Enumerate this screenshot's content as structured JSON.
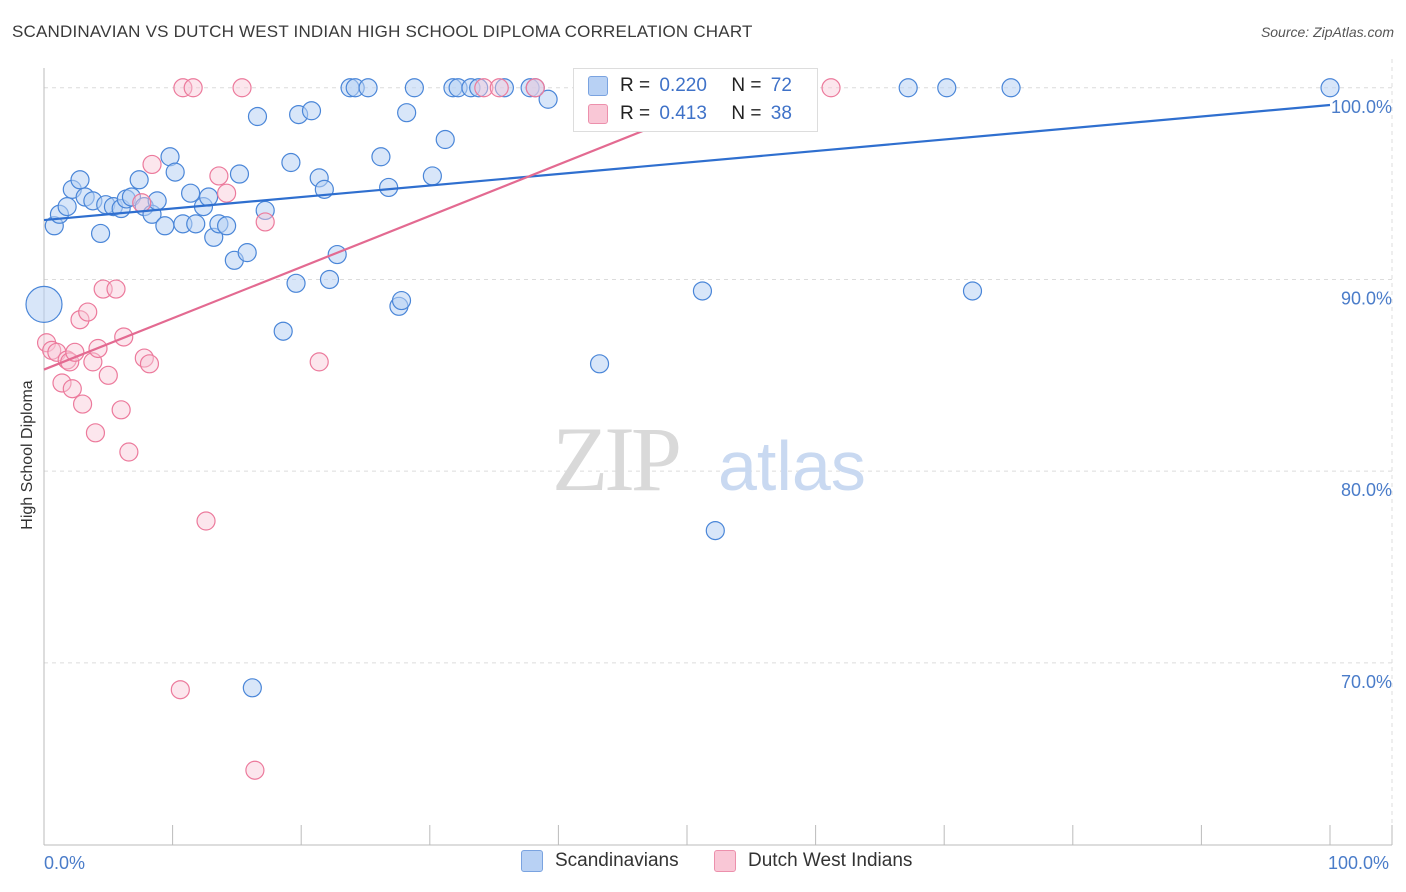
{
  "title": "SCANDINAVIAN VS DUTCH WEST INDIAN HIGH SCHOOL DIPLOMA CORRELATION CHART",
  "source": "Source: ZipAtlas.com",
  "watermark": {
    "zip": "ZIP",
    "atlas": "atlas"
  },
  "colors": {
    "blue": "#4a86d8",
    "blue_fill": "#b8d1f4",
    "pink": "#ec7a9c",
    "pink_fill": "#f9c7d6",
    "blue_line": "#2f6fcf",
    "pink_line": "#e36a91"
  },
  "legend": {
    "rows": [
      {
        "r_label": "R =",
        "r_value": "0.220",
        "n_label": "N =",
        "n_value": "72"
      },
      {
        "r_label": "R =",
        "r_value": "0.413",
        "n_label": "N =",
        "n_value": "38"
      }
    ]
  },
  "bottom_legend": [
    "Scandinavians",
    "Dutch West Indians"
  ],
  "chart_data": {
    "type": "scatter",
    "xlabel": "",
    "ylabel": "High School Diploma",
    "x_tick_labels": [
      "0.0%",
      "100.0%"
    ],
    "y_tick_labels": [
      "100.0%",
      "90.0%",
      "80.0%",
      "70.0%"
    ],
    "y_ticks": [
      100,
      90,
      80,
      70
    ],
    "xlim": [
      0,
      100
    ],
    "ylim": [
      60.5,
      101.5
    ],
    "series": [
      {
        "name": "Scandinavians",
        "trend": {
          "x": [
            0,
            100
          ],
          "y": [
            93.1,
            99.1
          ]
        },
        "points": [
          [
            0.8,
            92.8
          ],
          [
            1.2,
            93.4
          ],
          [
            1.8,
            93.8
          ],
          [
            2.2,
            94.7
          ],
          [
            2.8,
            95.2
          ],
          [
            3.2,
            94.3
          ],
          [
            3.8,
            94.1
          ],
          [
            4.4,
            92.4
          ],
          [
            4.8,
            93.9
          ],
          [
            5.4,
            93.8
          ],
          [
            6.0,
            93.7
          ],
          [
            6.4,
            94.2
          ],
          [
            6.8,
            94.3
          ],
          [
            7.4,
            95.2
          ],
          [
            7.8,
            93.8
          ],
          [
            8.4,
            93.4
          ],
          [
            8.8,
            94.1
          ],
          [
            9.4,
            92.8
          ],
          [
            9.8,
            96.4
          ],
          [
            10.2,
            95.6
          ],
          [
            10.8,
            92.9
          ],
          [
            11.4,
            94.5
          ],
          [
            11.8,
            92.9
          ],
          [
            12.4,
            93.8
          ],
          [
            12.8,
            94.3
          ],
          [
            13.2,
            92.2
          ],
          [
            13.6,
            92.9
          ],
          [
            14.2,
            92.8
          ],
          [
            14.8,
            91.0
          ],
          [
            15.2,
            95.5
          ],
          [
            15.8,
            91.4
          ],
          [
            16.6,
            98.5
          ],
          [
            17.2,
            93.6
          ],
          [
            18.6,
            87.3
          ],
          [
            19.2,
            96.1
          ],
          [
            19.6,
            89.8
          ],
          [
            19.8,
            98.6
          ],
          [
            20.8,
            98.8
          ],
          [
            21.4,
            95.3
          ],
          [
            21.8,
            94.7
          ],
          [
            22.2,
            90.0
          ],
          [
            22.8,
            91.3
          ],
          [
            23.8,
            100
          ],
          [
            24.2,
            100
          ],
          [
            25.2,
            100
          ],
          [
            26.2,
            96.4
          ],
          [
            26.8,
            94.8
          ],
          [
            27.6,
            88.6
          ],
          [
            27.8,
            88.9
          ],
          [
            28.2,
            98.7
          ],
          [
            28.8,
            100
          ],
          [
            30.2,
            95.4
          ],
          [
            31.2,
            97.3
          ],
          [
            31.8,
            100
          ],
          [
            32.2,
            100
          ],
          [
            33.2,
            100
          ],
          [
            33.8,
            100
          ],
          [
            35.8,
            100
          ],
          [
            37.8,
            100
          ],
          [
            38.2,
            100
          ],
          [
            39.2,
            99.4
          ],
          [
            42.2,
            100
          ],
          [
            43.2,
            85.6
          ],
          [
            46.2,
            100
          ],
          [
            51.2,
            89.4
          ],
          [
            52.2,
            76.9
          ],
          [
            67.2,
            100
          ],
          [
            70.2,
            100
          ],
          [
            72.2,
            89.4
          ],
          [
            75.2,
            100
          ],
          [
            100.0,
            100
          ],
          [
            16.2,
            68.7
          ]
        ]
      },
      {
        "name": "Dutch West Indians",
        "trend": {
          "x": [
            0,
            55
          ],
          "y": [
            85.3,
            100
          ]
        },
        "points": [
          [
            0.2,
            86.7
          ],
          [
            0.6,
            86.3
          ],
          [
            1.0,
            86.2
          ],
          [
            1.4,
            84.6
          ],
          [
            1.8,
            85.8
          ],
          [
            2.0,
            85.7
          ],
          [
            2.2,
            84.3
          ],
          [
            2.4,
            86.2
          ],
          [
            2.8,
            87.9
          ],
          [
            3.0,
            83.5
          ],
          [
            3.4,
            88.3
          ],
          [
            3.8,
            85.7
          ],
          [
            4.0,
            82.0
          ],
          [
            4.2,
            86.4
          ],
          [
            4.6,
            89.5
          ],
          [
            5.0,
            85.0
          ],
          [
            5.6,
            89.5
          ],
          [
            6.0,
            83.2
          ],
          [
            6.2,
            87.0
          ],
          [
            6.6,
            81.0
          ],
          [
            7.6,
            94.0
          ],
          [
            7.8,
            85.9
          ],
          [
            8.2,
            85.6
          ],
          [
            8.4,
            96.0
          ],
          [
            10.6,
            68.6
          ],
          [
            10.8,
            100
          ],
          [
            11.6,
            100
          ],
          [
            12.6,
            77.4
          ],
          [
            13.6,
            95.4
          ],
          [
            14.2,
            94.5
          ],
          [
            15.4,
            100
          ],
          [
            16.4,
            64.4
          ],
          [
            17.2,
            93.0
          ],
          [
            21.4,
            85.7
          ],
          [
            34.2,
            100
          ],
          [
            35.4,
            100
          ],
          [
            38.2,
            100
          ],
          [
            61.2,
            100
          ]
        ]
      }
    ]
  }
}
